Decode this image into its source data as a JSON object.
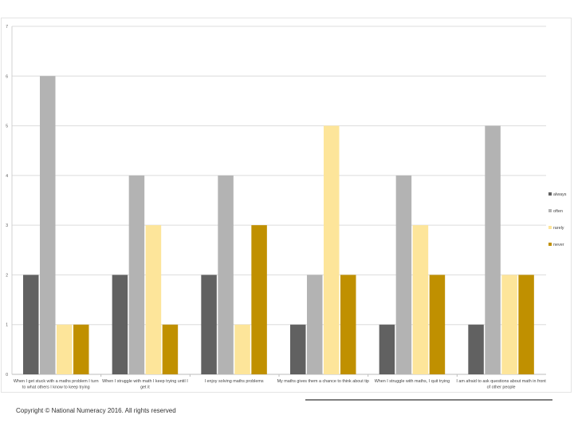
{
  "chart_data": {
    "type": "bar",
    "title": "",
    "xlabel": "",
    "ylabel": "",
    "ylim": [
      0,
      7
    ],
    "yticks": [
      0,
      1,
      2,
      3,
      4,
      5,
      6,
      7
    ],
    "grid": true,
    "legend_position": "right",
    "categories": [
      [
        "When I get stuck with a maths problem I turn",
        "to what others I know to keep trying"
      ],
      [
        "When I struggle with math I keep trying until I",
        "get it"
      ],
      [
        "I enjoy solving maths problems"
      ],
      [
        "My maths gives them a chance to think about tip"
      ],
      [
        "When I struggle with maths, I quit trying"
      ],
      [
        "I am afraid to ask questions about math in front",
        "of other people"
      ]
    ],
    "series": [
      {
        "name": "always",
        "color": "#616161",
        "values": [
          2,
          2,
          2,
          1,
          1,
          1
        ]
      },
      {
        "name": "often",
        "color": "#b3b3b3",
        "values": [
          6,
          4,
          4,
          2,
          4,
          5
        ]
      },
      {
        "name": "rarely",
        "color": "#fde59a",
        "values": [
          1,
          3,
          1,
          5,
          3,
          2
        ]
      },
      {
        "name": "never",
        "color": "#c09000",
        "values": [
          1,
          1,
          3,
          2,
          2,
          2
        ]
      }
    ]
  },
  "footer": {
    "copyright": "Copyright © National Numeracy 2016. All rights reserved"
  }
}
